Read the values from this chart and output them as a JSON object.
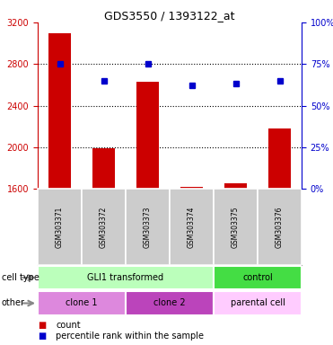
{
  "title": "GDS3550 / 1393122_at",
  "samples": [
    "GSM303371",
    "GSM303372",
    "GSM303373",
    "GSM303374",
    "GSM303375",
    "GSM303376"
  ],
  "counts": [
    3100,
    1990,
    2630,
    1620,
    1650,
    2180
  ],
  "percentiles": [
    75,
    65,
    75,
    62,
    63,
    65
  ],
  "ylim_left": [
    1600,
    3200
  ],
  "ylim_right": [
    0,
    100
  ],
  "yticks_left": [
    1600,
    2000,
    2400,
    2800,
    3200
  ],
  "yticks_right": [
    0,
    25,
    50,
    75,
    100
  ],
  "bar_color": "#cc0000",
  "dot_color": "#0000cc",
  "grid_color": "#000000",
  "left_axis_color": "#cc0000",
  "right_axis_color": "#0000cc",
  "bar_width": 0.5,
  "bg_color_sample": "#cccccc",
  "cell_type_colors": [
    "#bbffbb",
    "#44dd44"
  ],
  "other_colors_1": [
    "#dd88dd",
    "#bb44bb"
  ],
  "other_color_parental": "#ffccff",
  "row_label_cell_type": "cell type",
  "row_label_other": "other",
  "legend_count_label": "count",
  "legend_percentile_label": "percentile rank within the sample"
}
